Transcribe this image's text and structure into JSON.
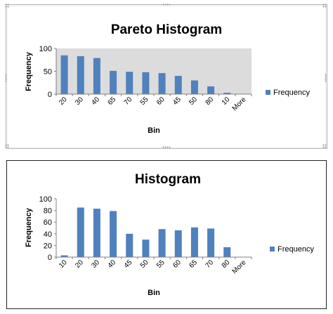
{
  "chart_data": [
    {
      "type": "bar",
      "title": "Pareto Histogram",
      "xlabel": "Bin",
      "ylabel": "Frequency",
      "categories": [
        "20",
        "30",
        "40",
        "65",
        "70",
        "55",
        "60",
        "45",
        "50",
        "80",
        "10",
        "More"
      ],
      "series": [
        {
          "name": "Frequency",
          "values": [
            85,
            83,
            79,
            51,
            49,
            48,
            46,
            40,
            30,
            17,
            3,
            0
          ]
        }
      ],
      "ylim": [
        0,
        100
      ],
      "yticks": [
        0,
        50,
        100
      ],
      "plot_background": "#dcdcdc",
      "grid": false,
      "legend": "right",
      "bar_color": "#4f81bd"
    },
    {
      "type": "bar",
      "title": "Histogram",
      "xlabel": "Bin",
      "ylabel": "Frequency",
      "categories": [
        "10",
        "20",
        "30",
        "40",
        "45",
        "50",
        "55",
        "60",
        "65",
        "70",
        "80",
        "More"
      ],
      "series": [
        {
          "name": "Frequency",
          "values": [
            3,
            85,
            83,
            79,
            40,
            30,
            48,
            46,
            51,
            49,
            17,
            0
          ]
        }
      ],
      "ylim": [
        0,
        100
      ],
      "yticks": [
        0,
        20,
        40,
        60,
        80,
        100
      ],
      "plot_background": "#ffffff",
      "grid": false,
      "legend": "right",
      "bar_color": "#4f81bd"
    }
  ]
}
